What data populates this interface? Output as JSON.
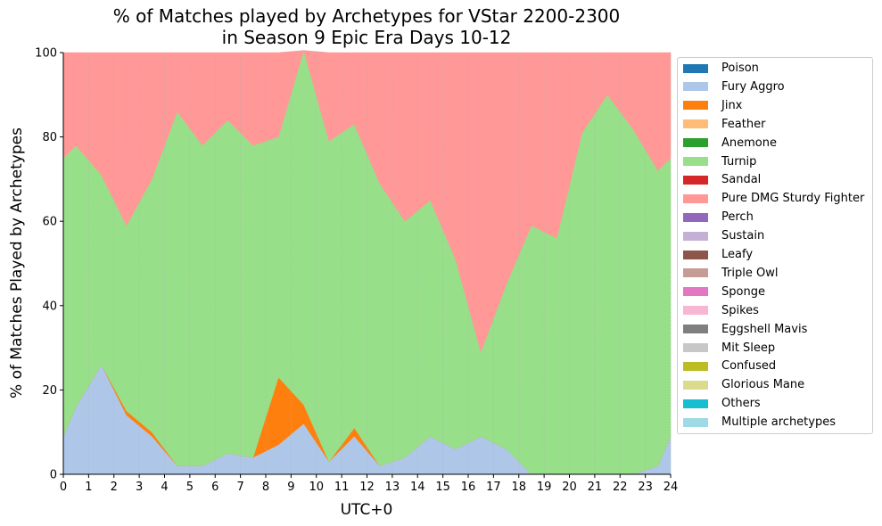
{
  "chart_data": {
    "type": "area",
    "title_line1": "% of Matches played by Archetypes for VStar 2200-2300",
    "title_line2": "in Season 9 Epic Era Days 10-12",
    "xlabel": "UTC+0",
    "ylabel": "% of Matches Played by Archetypes",
    "xlim": [
      0,
      24
    ],
    "ylim": [
      0,
      100
    ],
    "xticks": [
      "0",
      "1",
      "2",
      "3",
      "4",
      "5",
      "6",
      "7",
      "8",
      "9",
      "10",
      "11",
      "12",
      "13",
      "14",
      "15",
      "16",
      "17",
      "18",
      "19",
      "20",
      "21",
      "22",
      "23",
      "24"
    ],
    "yticks": [
      "0",
      "20",
      "40",
      "60",
      "80",
      "100"
    ],
    "grid": "vertical dotted",
    "legend_position": "right-outside",
    "stacked": true,
    "x": [
      0,
      0.5,
      1.5,
      2.5,
      3.5,
      4.5,
      5.5,
      6.5,
      7.5,
      8.5,
      9.5,
      10.5,
      11.5,
      12.5,
      13.5,
      14.5,
      15.5,
      16.5,
      17.5,
      18.5,
      19.5,
      20.5,
      21.5,
      22.5,
      23.5,
      24
    ],
    "series": [
      {
        "name": "Poison",
        "color": "#1f77b4",
        "values": [
          0,
          0,
          0,
          0,
          0,
          0,
          0,
          0,
          0,
          0,
          0,
          0,
          0,
          0,
          0,
          0,
          0,
          0,
          0,
          0,
          0,
          0,
          0,
          0,
          0,
          0
        ]
      },
      {
        "name": "Fury Aggro",
        "color": "#aec7e8",
        "values": [
          9,
          16,
          26,
          14,
          9,
          2,
          2,
          5,
          4,
          7,
          12,
          3,
          9,
          2,
          4,
          9,
          6,
          9,
          6,
          0,
          0,
          0,
          0,
          0,
          2,
          9
        ]
      },
      {
        "name": "Jinx",
        "color": "#ff7f0e",
        "values": [
          0,
          0,
          0,
          1,
          1,
          0,
          0,
          0,
          0,
          16,
          4.5,
          0,
          2,
          0,
          0,
          0,
          0,
          0,
          0,
          0,
          0,
          0,
          0,
          0,
          0,
          0
        ]
      },
      {
        "name": "Feather",
        "color": "#ffbb78",
        "values": [
          0,
          0,
          0,
          0,
          0,
          0,
          0,
          0,
          0,
          0,
          0,
          0,
          0,
          0,
          0,
          0,
          0,
          0,
          0,
          0,
          0,
          0,
          0,
          0,
          0,
          0
        ]
      },
      {
        "name": "Anemone",
        "color": "#2ca02c",
        "values": [
          0,
          0,
          0,
          0,
          0,
          0,
          0,
          0,
          0,
          0,
          0,
          0,
          0,
          0,
          0,
          0,
          0,
          0,
          0,
          0,
          0,
          0,
          0,
          0,
          0,
          0
        ]
      },
      {
        "name": "Turnip",
        "color": "#98df8a",
        "values": [
          66,
          62,
          45,
          44,
          60,
          84,
          76,
          79,
          74,
          57,
          84,
          76,
          72,
          67,
          56,
          56,
          45,
          20,
          39,
          59,
          56,
          81,
          90,
          82,
          70,
          66
        ]
      },
      {
        "name": "Sandal",
        "color": "#d62728",
        "values": [
          0,
          0,
          0,
          0,
          0,
          0,
          0,
          0,
          0,
          0,
          0,
          0,
          0,
          0,
          0,
          0,
          0,
          0,
          0,
          0,
          0,
          0,
          0,
          0,
          0,
          0
        ]
      },
      {
        "name": "Pure DMG Sturdy Fighter",
        "color": "#ff9896",
        "values": [
          25,
          22,
          29,
          41,
          30,
          14,
          22,
          16,
          22,
          20,
          0,
          21,
          17,
          31,
          40,
          35,
          49,
          71,
          55,
          41,
          44,
          19,
          10,
          18,
          28,
          25
        ]
      },
      {
        "name": "Perch",
        "color": "#9467bd",
        "values": [
          0,
          0,
          0,
          0,
          0,
          0,
          0,
          0,
          0,
          0,
          0,
          0,
          0,
          0,
          0,
          0,
          0,
          0,
          0,
          0,
          0,
          0,
          0,
          0,
          0,
          0
        ]
      },
      {
        "name": "Sustain",
        "color": "#c5b0d5",
        "values": [
          0,
          0,
          0,
          0,
          0,
          0,
          0,
          0,
          0,
          0,
          0,
          0,
          0,
          0,
          0,
          0,
          0,
          0,
          0,
          0,
          0,
          0,
          0,
          0,
          0,
          0
        ]
      },
      {
        "name": "Leafy",
        "color": "#8c564b",
        "values": [
          0,
          0,
          0,
          0,
          0,
          0,
          0,
          0,
          0,
          0,
          0,
          0,
          0,
          0,
          0,
          0,
          0,
          0,
          0,
          0,
          0,
          0,
          0,
          0,
          0,
          0
        ]
      },
      {
        "name": "Triple Owl",
        "color": "#c49c94",
        "values": [
          0,
          0,
          0,
          0,
          0,
          0,
          0,
          0,
          0,
          0,
          0,
          0,
          0,
          0,
          0,
          0,
          0,
          0,
          0,
          0,
          0,
          0,
          0,
          0,
          0,
          0
        ]
      },
      {
        "name": "Sponge",
        "color": "#e377c2",
        "values": [
          0,
          0,
          0,
          0,
          0,
          0,
          0,
          0,
          0,
          0,
          0,
          0,
          0,
          0,
          0,
          0,
          0,
          0,
          0,
          0,
          0,
          0,
          0,
          0,
          0,
          0
        ]
      },
      {
        "name": "Spikes",
        "color": "#f7b6d2",
        "values": [
          0,
          0,
          0,
          0,
          0,
          0,
          0,
          0,
          0,
          0,
          0,
          0,
          0,
          0,
          0,
          0,
          0,
          0,
          0,
          0,
          0,
          0,
          0,
          0,
          0,
          0
        ]
      },
      {
        "name": "Eggshell Mavis",
        "color": "#7f7f7f",
        "values": [
          0,
          0,
          0,
          0,
          0,
          0,
          0,
          0,
          0,
          0,
          0,
          0,
          0,
          0,
          0,
          0,
          0,
          0,
          0,
          0,
          0,
          0,
          0,
          0,
          0,
          0
        ]
      },
      {
        "name": "Mit Sleep",
        "color": "#c7c7c7",
        "values": [
          0,
          0,
          0,
          0,
          0,
          0,
          0,
          0,
          0,
          0,
          0,
          0,
          0,
          0,
          0,
          0,
          0,
          0,
          0,
          0,
          0,
          0,
          0,
          0,
          0,
          0
        ]
      },
      {
        "name": "Confused",
        "color": "#bcbd22",
        "values": [
          0,
          0,
          0,
          0,
          0,
          0,
          0,
          0,
          0,
          0,
          0,
          0,
          0,
          0,
          0,
          0,
          0,
          0,
          0,
          0,
          0,
          0,
          0,
          0,
          0,
          0
        ]
      },
      {
        "name": "Glorious Mane",
        "color": "#dbdb8d",
        "values": [
          0,
          0,
          0,
          0,
          0,
          0,
          0,
          0,
          0,
          0,
          0,
          0,
          0,
          0,
          0,
          0,
          0,
          0,
          0,
          0,
          0,
          0,
          0,
          0,
          0,
          0
        ]
      },
      {
        "name": "Others",
        "color": "#17becf",
        "values": [
          0,
          0,
          0,
          0,
          0,
          0,
          0,
          0,
          0,
          0,
          0,
          0,
          0,
          0,
          0,
          0,
          0,
          0,
          0,
          0,
          0,
          0,
          0,
          0,
          0,
          0
        ]
      },
      {
        "name": "Multiple archetypes",
        "color": "#9edae5",
        "values": [
          0,
          0,
          0,
          0,
          0,
          0,
          0,
          0,
          0,
          0,
          0,
          0,
          0,
          0,
          0,
          0,
          0,
          0,
          0,
          0,
          0,
          0,
          0,
          0,
          0,
          0
        ]
      }
    ]
  }
}
